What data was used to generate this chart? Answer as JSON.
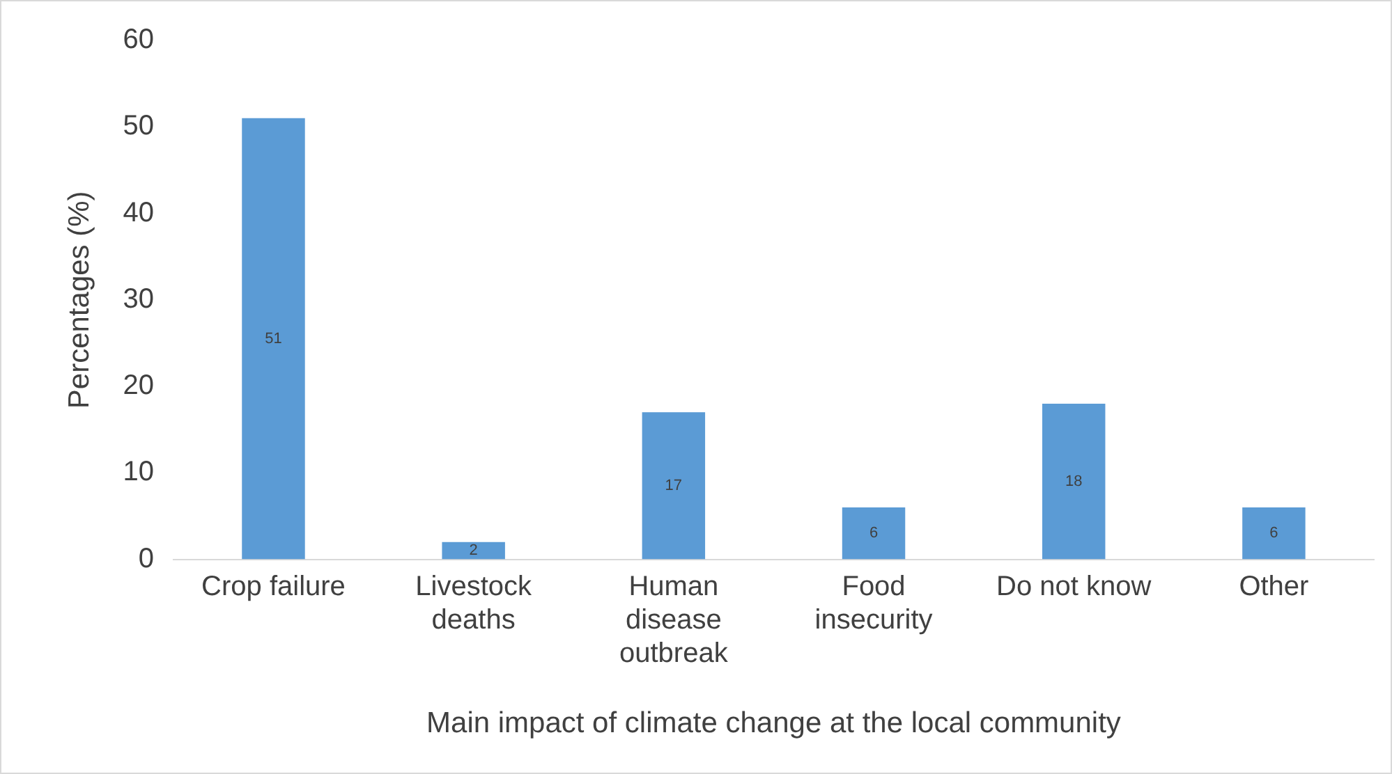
{
  "chart_data": {
    "type": "bar",
    "xlabel": "Main impact of climate change at the local community",
    "ylabel": "Percentages (%)",
    "categories": [
      "Crop failure",
      "Livestock deaths",
      "Human disease outbreak",
      "Food insecurity",
      "Do not know",
      "Other"
    ],
    "values": [
      51,
      2,
      17,
      6,
      18,
      6
    ],
    "color": "#5b9bd5",
    "ylim": [
      0,
      60
    ],
    "yticks": [
      0,
      10,
      20,
      30,
      40,
      50,
      60
    ],
    "grid": false,
    "legend": false,
    "data_labels": true
  }
}
